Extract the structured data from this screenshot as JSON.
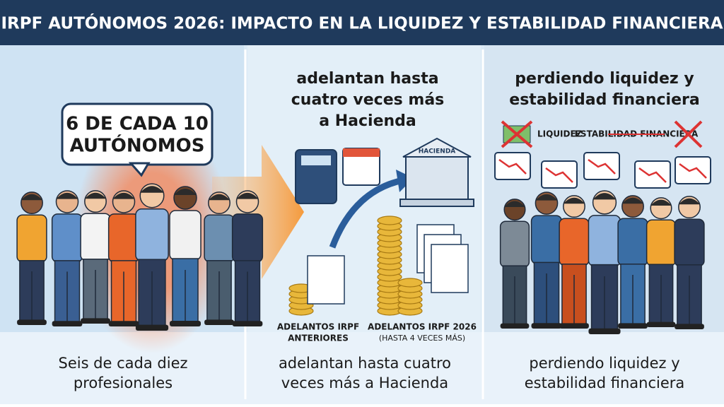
{
  "header": {
    "title": "IRPF AUTÓNOMOS 2026: IMPACTO EN LA LIQUIDEZ Y ESTABILIDAD FINANCIERA"
  },
  "panels": [
    {
      "bubble": [
        "6 DE CADA 10",
        "AUTÓNOMOS"
      ],
      "caption": [
        "Seis de cada diez",
        "profesionales"
      ]
    },
    {
      "heading": [
        "adelantan hasta",
        "cuatro veces más",
        "a Hacienda"
      ],
      "building": "HACIENDA",
      "left_label": [
        "ADELANTOS IRPF",
        "ANTERIORES"
      ],
      "right_label": [
        "ADELANTOS IRPF 2026",
        "(HASTA 4 VECES MÁS)"
      ],
      "caption": [
        "adelantan hasta cuatro",
        "veces más a Hacienda"
      ]
    },
    {
      "heading": [
        "perdiendo liquidez y",
        "estabilidad financiera"
      ],
      "icon_labels": [
        "LIQUIDEZ",
        "ESTABILIDAD FINANCIERA"
      ],
      "caption": [
        "perdiendo liquidez y",
        "estabilidad financiera"
      ]
    }
  ]
}
